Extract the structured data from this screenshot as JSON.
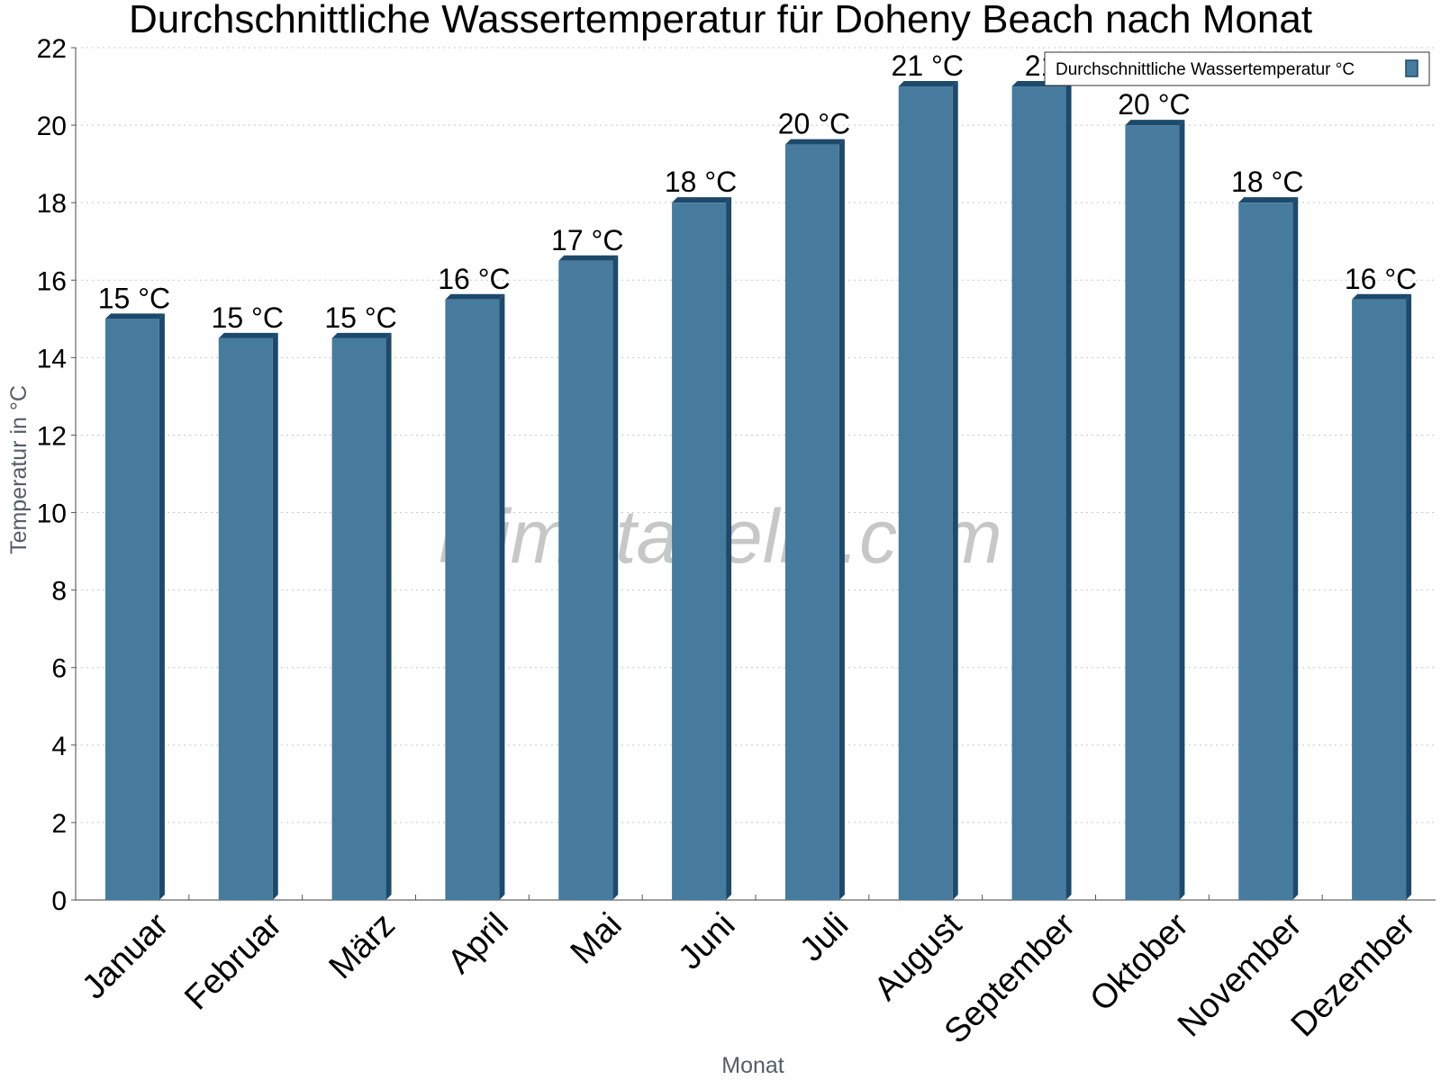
{
  "chart_data": {
    "type": "bar",
    "title": "Durchschnittliche Wassertemperatur für Doheny Beach nach Monat",
    "xlabel": "Monat",
    "ylabel": "Temperatur in °C",
    "ylim": [
      0,
      22
    ],
    "yticks": [
      0,
      2,
      4,
      6,
      8,
      10,
      12,
      14,
      16,
      18,
      20,
      22
    ],
    "grid": true,
    "legend_position": "top-right",
    "categories": [
      "Januar",
      "Februar",
      "März",
      "April",
      "Mai",
      "Juni",
      "Juli",
      "August",
      "September",
      "Oktober",
      "November",
      "Dezember"
    ],
    "series": [
      {
        "name": "Durchschnittliche Wassertemperatur °C",
        "values": [
          15.0,
          14.5,
          14.5,
          15.5,
          16.5,
          18.0,
          19.5,
          21.0,
          21.0,
          20.0,
          18.0,
          15.5
        ],
        "labels": [
          "15 °C",
          "15 °C",
          "15 °C",
          "16 °C",
          "17 °C",
          "18 °C",
          "20 °C",
          "21 °C",
          "21",
          "20 °C",
          "18 °C",
          "16 °C"
        ],
        "color": "#467b9e",
        "side_color": "#1d4a6b"
      }
    ],
    "watermark": "klimatabelle.com"
  }
}
